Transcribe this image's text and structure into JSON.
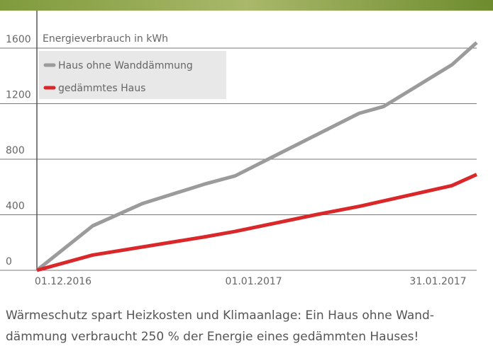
{
  "chart_data": {
    "type": "line",
    "ylabel": "Energieverbrauch in kWh",
    "xlim": [
      -4,
      67
    ],
    "xticks": [
      {
        "value": 0,
        "label": "01.12.2016"
      },
      {
        "value": 31,
        "label": "01.01.2017"
      },
      {
        "value": 61,
        "label": "31.01.2017"
      }
    ],
    "ylim": [
      0,
      1600
    ],
    "yticks": [
      0,
      400,
      800,
      1200,
      1600
    ],
    "grid": true,
    "series": [
      {
        "name": "Haus ohne Wanddämmung",
        "color": "#9b9b9b",
        "x": [
          -4,
          5,
          13,
          23,
          28,
          48,
          52,
          63,
          67
        ],
        "values": [
          0,
          320,
          480,
          620,
          680,
          1130,
          1180,
          1480,
          1640
        ]
      },
      {
        "name": "gedämmtes Haus",
        "color": "#d9272a",
        "x": [
          -4,
          5,
          23,
          28,
          41,
          48,
          63,
          67
        ],
        "values": [
          0,
          110,
          240,
          280,
          400,
          460,
          610,
          690
        ]
      }
    ]
  },
  "caption": [
    "Wärmeschutz spart Heizkosten und Klimaanlage: Ein Haus ohne Wand-",
    "dämmung verbraucht 250 % der Energie eines gedämmten Hauses!"
  ]
}
